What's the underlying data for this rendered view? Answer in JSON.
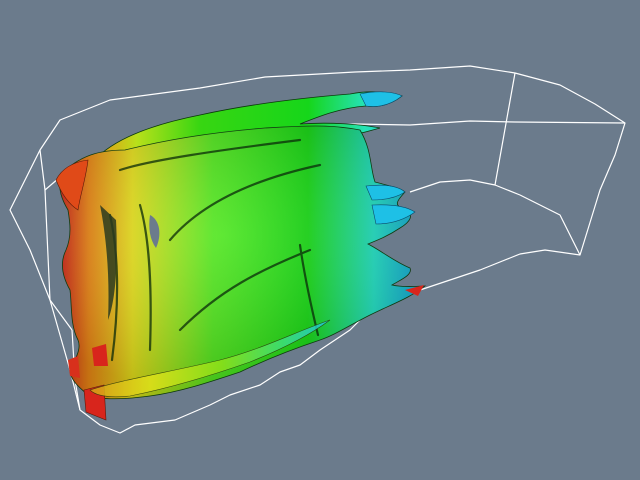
{
  "scene": {
    "background_color": "#6b7b8c",
    "outline_color": "#ffffff",
    "surface_colormap": [
      "#d8251c",
      "#f08a16",
      "#e8e21a",
      "#4fe61a",
      "#13d80f",
      "#22e6c8",
      "#16a8e6"
    ]
  }
}
